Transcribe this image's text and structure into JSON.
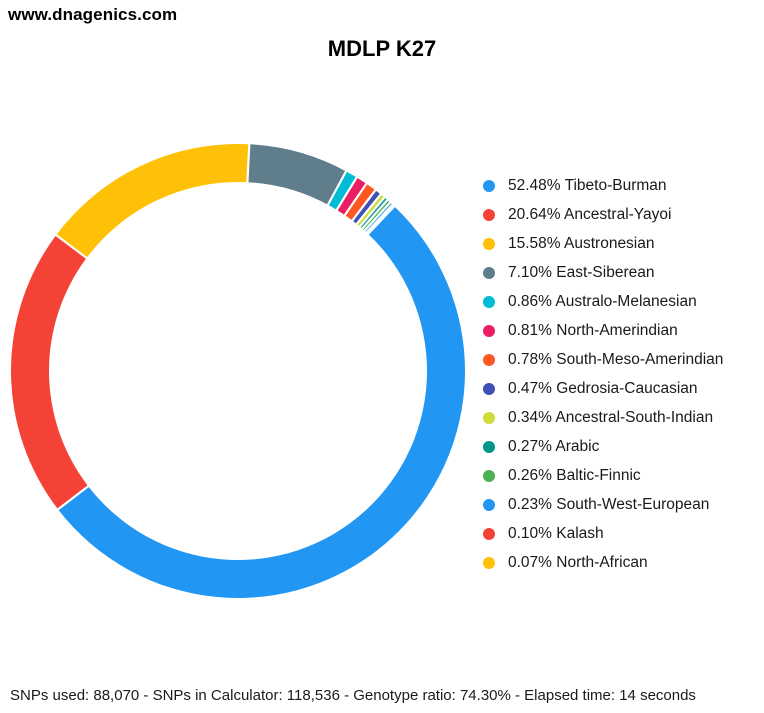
{
  "header": {
    "site": "www.dnagenics.com"
  },
  "title": "MDLP K27",
  "status_bar": {
    "text": "SNPs used: 88,070 - SNPs in Calculator: 118,536 - Genotype ratio: 74.30% - Elapsed time: 14 seconds",
    "snps_used": "88,070",
    "snps_in_calculator": "118,536",
    "genotype_ratio": "74.30%",
    "elapsed_time": "14 seconds"
  },
  "chart_data": {
    "type": "pie",
    "donut": true,
    "title": "MDLP K27",
    "legend_position": "right",
    "rotation_deg": 43.5,
    "slices": [
      {
        "label": "Tibeto-Burman",
        "value": 52.48,
        "pct_label": "52.48%",
        "color": "#2196F3"
      },
      {
        "label": "Ancestral-Yayoi",
        "value": 20.64,
        "pct_label": "20.64%",
        "color": "#F44336"
      },
      {
        "label": "Austronesian",
        "value": 15.58,
        "pct_label": "15.58%",
        "color": "#FFC107"
      },
      {
        "label": "East-Siberean",
        "value": 7.1,
        "pct_label": "7.10%",
        "color": "#607D8B"
      },
      {
        "label": "Australo-Melanesian",
        "value": 0.86,
        "pct_label": "0.86%",
        "color": "#00BCD4"
      },
      {
        "label": "North-Amerindian",
        "value": 0.81,
        "pct_label": "0.81%",
        "color": "#E91E63"
      },
      {
        "label": "South-Meso-Amerindian",
        "value": 0.78,
        "pct_label": "0.78%",
        "color": "#FF5722"
      },
      {
        "label": "Gedrosia-Caucasian",
        "value": 0.47,
        "pct_label": "0.47%",
        "color": "#3F51B5"
      },
      {
        "label": "Ancestral-South-Indian",
        "value": 0.34,
        "pct_label": "0.34%",
        "color": "#CDDC39"
      },
      {
        "label": "Arabic",
        "value": 0.27,
        "pct_label": "0.27%",
        "color": "#009688"
      },
      {
        "label": "Baltic-Finnic",
        "value": 0.26,
        "pct_label": "0.26%",
        "color": "#4CAF50"
      },
      {
        "label": "South-West-European",
        "value": 0.23,
        "pct_label": "0.23%",
        "color": "#2196F3"
      },
      {
        "label": "Kalash",
        "value": 0.1,
        "pct_label": "0.10%",
        "color": "#F44336"
      },
      {
        "label": "North-African",
        "value": 0.07,
        "pct_label": "0.07%",
        "color": "#FFC107"
      }
    ]
  }
}
